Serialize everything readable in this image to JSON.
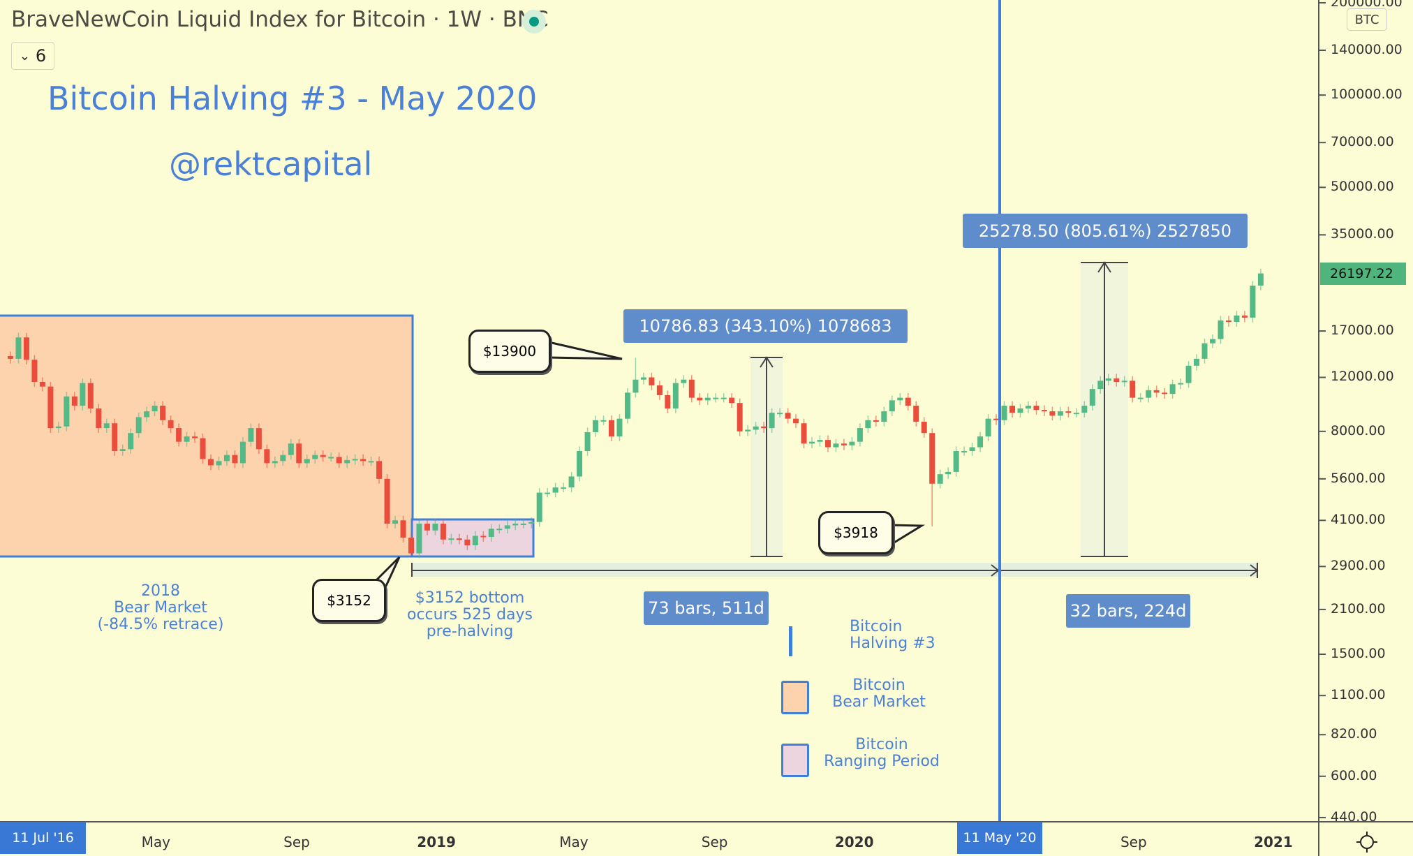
{
  "header": {
    "title": "BraveNewCoin Liquid Index for Bitcoin · 1W · BNC",
    "indicator_count": "6",
    "status_dot_color": "#089981"
  },
  "annotations": {
    "title": "Bitcoin Halving #3 - May 2020",
    "author": "@rektcapital",
    "bear_label": [
      "2018",
      "Bear Market",
      "(-84.5% retrace)"
    ],
    "bottom_callout": "$3152",
    "bottom_note": [
      "$3152 bottom",
      "occurs 525 days",
      "pre-halving"
    ],
    "high_callout": "$13900",
    "low_callout": "$3918",
    "measure1": "10786.83 (343.10%) 1078683",
    "measure2": "25278.50 (805.61%) 2527850",
    "range1": "73 bars, 511d",
    "range2": "32 bars, 224d"
  },
  "legend": [
    {
      "label": [
        "Bitcoin",
        "Halving #3"
      ],
      "icon": "vertical-line",
      "color": "#3f7fd8"
    },
    {
      "label": [
        "Bitcoin",
        "Bear Market"
      ],
      "icon": "square",
      "color": "#fcd3ad"
    },
    {
      "label": [
        "Bitcoin",
        "Ranging Period"
      ],
      "icon": "square",
      "color": "#ecd5df"
    }
  ],
  "price_axis": {
    "currency": "BTC",
    "last_price": "26197.22",
    "last_price_color": "#4fb57c",
    "ticks": [
      "200000.00",
      "140000.00",
      "100000.00",
      "70000.00",
      "50000.00",
      "35000.00",
      "17000.00",
      "12000.00",
      "8000.00",
      "5600.00",
      "4100.00",
      "2900.00",
      "2100.00",
      "1500.00",
      "1100.00",
      "820.00",
      "600.00",
      "440.00"
    ]
  },
  "time_axis": {
    "crosshair_left": "11 Jul '16",
    "halving_label": "11 May '20",
    "ticks": [
      {
        "label": "May",
        "date": "2018-05-01",
        "bold": false
      },
      {
        "label": "Sep",
        "date": "2018-09-01",
        "bold": false
      },
      {
        "label": "2019",
        "date": "2019-01-01",
        "bold": true
      },
      {
        "label": "May",
        "date": "2019-05-01",
        "bold": false
      },
      {
        "label": "Sep",
        "date": "2019-09-01",
        "bold": false
      },
      {
        "label": "2020",
        "date": "2020-01-01",
        "bold": true
      },
      {
        "label": "Sep",
        "date": "2020-09-01",
        "bold": false
      },
      {
        "label": "2021",
        "date": "2021-01-01",
        "bold": true
      }
    ]
  },
  "chart_data": {
    "type": "candlestick",
    "scale": "log",
    "interval": "1W",
    "ylim": [
      440,
      200000
    ],
    "start_week": "2017-12-25",
    "up_color": "#53b987",
    "down_color": "#eb4d3d",
    "halving_date": "2020-05-11",
    "extremes": [
      {
        "week": "2018-12-10",
        "low": 3152
      },
      {
        "week": "2019-06-24",
        "high": 13900
      },
      {
        "week": "2020-03-09",
        "low": 3918
      }
    ],
    "closes": [
      13800,
      16200,
      13700,
      11600,
      11200,
      8200,
      8300,
      10400,
      9700,
      11500,
      9500,
      8200,
      8500,
      6900,
      7000,
      7900,
      8900,
      9300,
      9700,
      8700,
      8200,
      7400,
      7700,
      7600,
      6500,
      6200,
      6400,
      6700,
      6300,
      7400,
      8200,
      7000,
      6300,
      6400,
      6700,
      7300,
      6300,
      6500,
      6700,
      6600,
      6600,
      6300,
      6450,
      6500,
      6400,
      6400,
      5600,
      4000,
      4100,
      3600,
      3200,
      4000,
      3800,
      4000,
      3550,
      3580,
      3550,
      3400,
      3650,
      3620,
      3850,
      3850,
      3950,
      4000,
      4000,
      4050,
      5050,
      5050,
      5250,
      5250,
      5700,
      6900,
      7950,
      8700,
      8700,
      7700,
      8800,
      10700,
      11800,
      12000,
      11300,
      10500,
      9500,
      11500,
      11800,
      10300,
      10100,
      10300,
      10300,
      10300,
      9900,
      8000,
      8100,
      8300,
      8200,
      9200,
      9200,
      8800,
      8500,
      7300,
      7400,
      7500,
      7100,
      7300,
      7200,
      7400,
      8200,
      8700,
      8600,
      9300,
      10100,
      10300,
      9700,
      8600,
      7900,
      5400,
      5800,
      5900,
      6900,
      6900,
      7100,
      7700,
      8800,
      8700,
      9700,
      9200,
      9500,
      9700,
      9400,
      9300,
      9000,
      9300,
      9200,
      9200,
      9700,
      11000,
      11700,
      11900,
      11600,
      11700,
      10300,
      10300,
      10900,
      10700,
      10600,
      11400,
      11500,
      13100,
      13800,
      15500,
      16000,
      18400,
      18200,
      19100,
      18800,
      23900,
      26197.22
    ]
  }
}
